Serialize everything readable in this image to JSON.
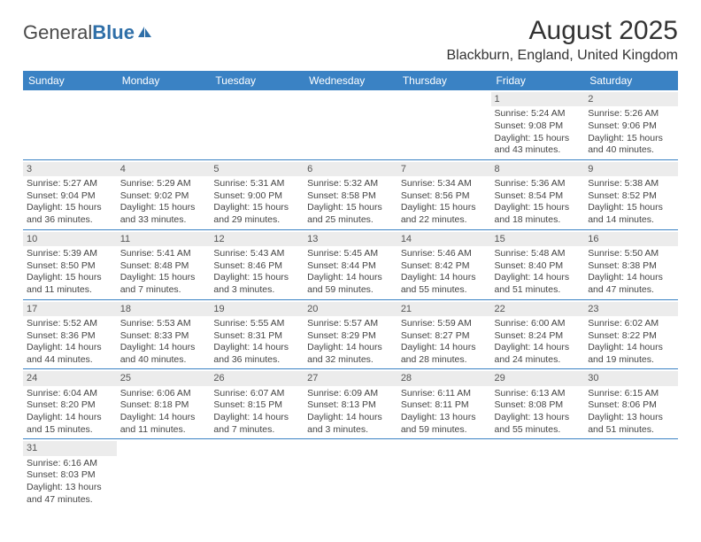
{
  "logo": {
    "text1": "General",
    "text2": "Blue"
  },
  "title": "August 2025",
  "location": "Blackburn, England, United Kingdom",
  "colors": {
    "header_bg": "#3a82c4",
    "daynum_bg": "#ececec",
    "rule": "#3a82c4"
  },
  "day_headers": [
    "Sunday",
    "Monday",
    "Tuesday",
    "Wednesday",
    "Thursday",
    "Friday",
    "Saturday"
  ],
  "weeks": [
    [
      null,
      null,
      null,
      null,
      null,
      {
        "n": "1",
        "sunrise": "Sunrise: 5:24 AM",
        "sunset": "Sunset: 9:08 PM",
        "day1": "Daylight: 15 hours",
        "day2": "and 43 minutes."
      },
      {
        "n": "2",
        "sunrise": "Sunrise: 5:26 AM",
        "sunset": "Sunset: 9:06 PM",
        "day1": "Daylight: 15 hours",
        "day2": "and 40 minutes."
      }
    ],
    [
      {
        "n": "3",
        "sunrise": "Sunrise: 5:27 AM",
        "sunset": "Sunset: 9:04 PM",
        "day1": "Daylight: 15 hours",
        "day2": "and 36 minutes."
      },
      {
        "n": "4",
        "sunrise": "Sunrise: 5:29 AM",
        "sunset": "Sunset: 9:02 PM",
        "day1": "Daylight: 15 hours",
        "day2": "and 33 minutes."
      },
      {
        "n": "5",
        "sunrise": "Sunrise: 5:31 AM",
        "sunset": "Sunset: 9:00 PM",
        "day1": "Daylight: 15 hours",
        "day2": "and 29 minutes."
      },
      {
        "n": "6",
        "sunrise": "Sunrise: 5:32 AM",
        "sunset": "Sunset: 8:58 PM",
        "day1": "Daylight: 15 hours",
        "day2": "and 25 minutes."
      },
      {
        "n": "7",
        "sunrise": "Sunrise: 5:34 AM",
        "sunset": "Sunset: 8:56 PM",
        "day1": "Daylight: 15 hours",
        "day2": "and 22 minutes."
      },
      {
        "n": "8",
        "sunrise": "Sunrise: 5:36 AM",
        "sunset": "Sunset: 8:54 PM",
        "day1": "Daylight: 15 hours",
        "day2": "and 18 minutes."
      },
      {
        "n": "9",
        "sunrise": "Sunrise: 5:38 AM",
        "sunset": "Sunset: 8:52 PM",
        "day1": "Daylight: 15 hours",
        "day2": "and 14 minutes."
      }
    ],
    [
      {
        "n": "10",
        "sunrise": "Sunrise: 5:39 AM",
        "sunset": "Sunset: 8:50 PM",
        "day1": "Daylight: 15 hours",
        "day2": "and 11 minutes."
      },
      {
        "n": "11",
        "sunrise": "Sunrise: 5:41 AM",
        "sunset": "Sunset: 8:48 PM",
        "day1": "Daylight: 15 hours",
        "day2": "and 7 minutes."
      },
      {
        "n": "12",
        "sunrise": "Sunrise: 5:43 AM",
        "sunset": "Sunset: 8:46 PM",
        "day1": "Daylight: 15 hours",
        "day2": "and 3 minutes."
      },
      {
        "n": "13",
        "sunrise": "Sunrise: 5:45 AM",
        "sunset": "Sunset: 8:44 PM",
        "day1": "Daylight: 14 hours",
        "day2": "and 59 minutes."
      },
      {
        "n": "14",
        "sunrise": "Sunrise: 5:46 AM",
        "sunset": "Sunset: 8:42 PM",
        "day1": "Daylight: 14 hours",
        "day2": "and 55 minutes."
      },
      {
        "n": "15",
        "sunrise": "Sunrise: 5:48 AM",
        "sunset": "Sunset: 8:40 PM",
        "day1": "Daylight: 14 hours",
        "day2": "and 51 minutes."
      },
      {
        "n": "16",
        "sunrise": "Sunrise: 5:50 AM",
        "sunset": "Sunset: 8:38 PM",
        "day1": "Daylight: 14 hours",
        "day2": "and 47 minutes."
      }
    ],
    [
      {
        "n": "17",
        "sunrise": "Sunrise: 5:52 AM",
        "sunset": "Sunset: 8:36 PM",
        "day1": "Daylight: 14 hours",
        "day2": "and 44 minutes."
      },
      {
        "n": "18",
        "sunrise": "Sunrise: 5:53 AM",
        "sunset": "Sunset: 8:33 PM",
        "day1": "Daylight: 14 hours",
        "day2": "and 40 minutes."
      },
      {
        "n": "19",
        "sunrise": "Sunrise: 5:55 AM",
        "sunset": "Sunset: 8:31 PM",
        "day1": "Daylight: 14 hours",
        "day2": "and 36 minutes."
      },
      {
        "n": "20",
        "sunrise": "Sunrise: 5:57 AM",
        "sunset": "Sunset: 8:29 PM",
        "day1": "Daylight: 14 hours",
        "day2": "and 32 minutes."
      },
      {
        "n": "21",
        "sunrise": "Sunrise: 5:59 AM",
        "sunset": "Sunset: 8:27 PM",
        "day1": "Daylight: 14 hours",
        "day2": "and 28 minutes."
      },
      {
        "n": "22",
        "sunrise": "Sunrise: 6:00 AM",
        "sunset": "Sunset: 8:24 PM",
        "day1": "Daylight: 14 hours",
        "day2": "and 24 minutes."
      },
      {
        "n": "23",
        "sunrise": "Sunrise: 6:02 AM",
        "sunset": "Sunset: 8:22 PM",
        "day1": "Daylight: 14 hours",
        "day2": "and 19 minutes."
      }
    ],
    [
      {
        "n": "24",
        "sunrise": "Sunrise: 6:04 AM",
        "sunset": "Sunset: 8:20 PM",
        "day1": "Daylight: 14 hours",
        "day2": "and 15 minutes."
      },
      {
        "n": "25",
        "sunrise": "Sunrise: 6:06 AM",
        "sunset": "Sunset: 8:18 PM",
        "day1": "Daylight: 14 hours",
        "day2": "and 11 minutes."
      },
      {
        "n": "26",
        "sunrise": "Sunrise: 6:07 AM",
        "sunset": "Sunset: 8:15 PM",
        "day1": "Daylight: 14 hours",
        "day2": "and 7 minutes."
      },
      {
        "n": "27",
        "sunrise": "Sunrise: 6:09 AM",
        "sunset": "Sunset: 8:13 PM",
        "day1": "Daylight: 14 hours",
        "day2": "and 3 minutes."
      },
      {
        "n": "28",
        "sunrise": "Sunrise: 6:11 AM",
        "sunset": "Sunset: 8:11 PM",
        "day1": "Daylight: 13 hours",
        "day2": "and 59 minutes."
      },
      {
        "n": "29",
        "sunrise": "Sunrise: 6:13 AM",
        "sunset": "Sunset: 8:08 PM",
        "day1": "Daylight: 13 hours",
        "day2": "and 55 minutes."
      },
      {
        "n": "30",
        "sunrise": "Sunrise: 6:15 AM",
        "sunset": "Sunset: 8:06 PM",
        "day1": "Daylight: 13 hours",
        "day2": "and 51 minutes."
      }
    ],
    [
      {
        "n": "31",
        "sunrise": "Sunrise: 6:16 AM",
        "sunset": "Sunset: 8:03 PM",
        "day1": "Daylight: 13 hours",
        "day2": "and 47 minutes."
      },
      null,
      null,
      null,
      null,
      null,
      null
    ]
  ]
}
